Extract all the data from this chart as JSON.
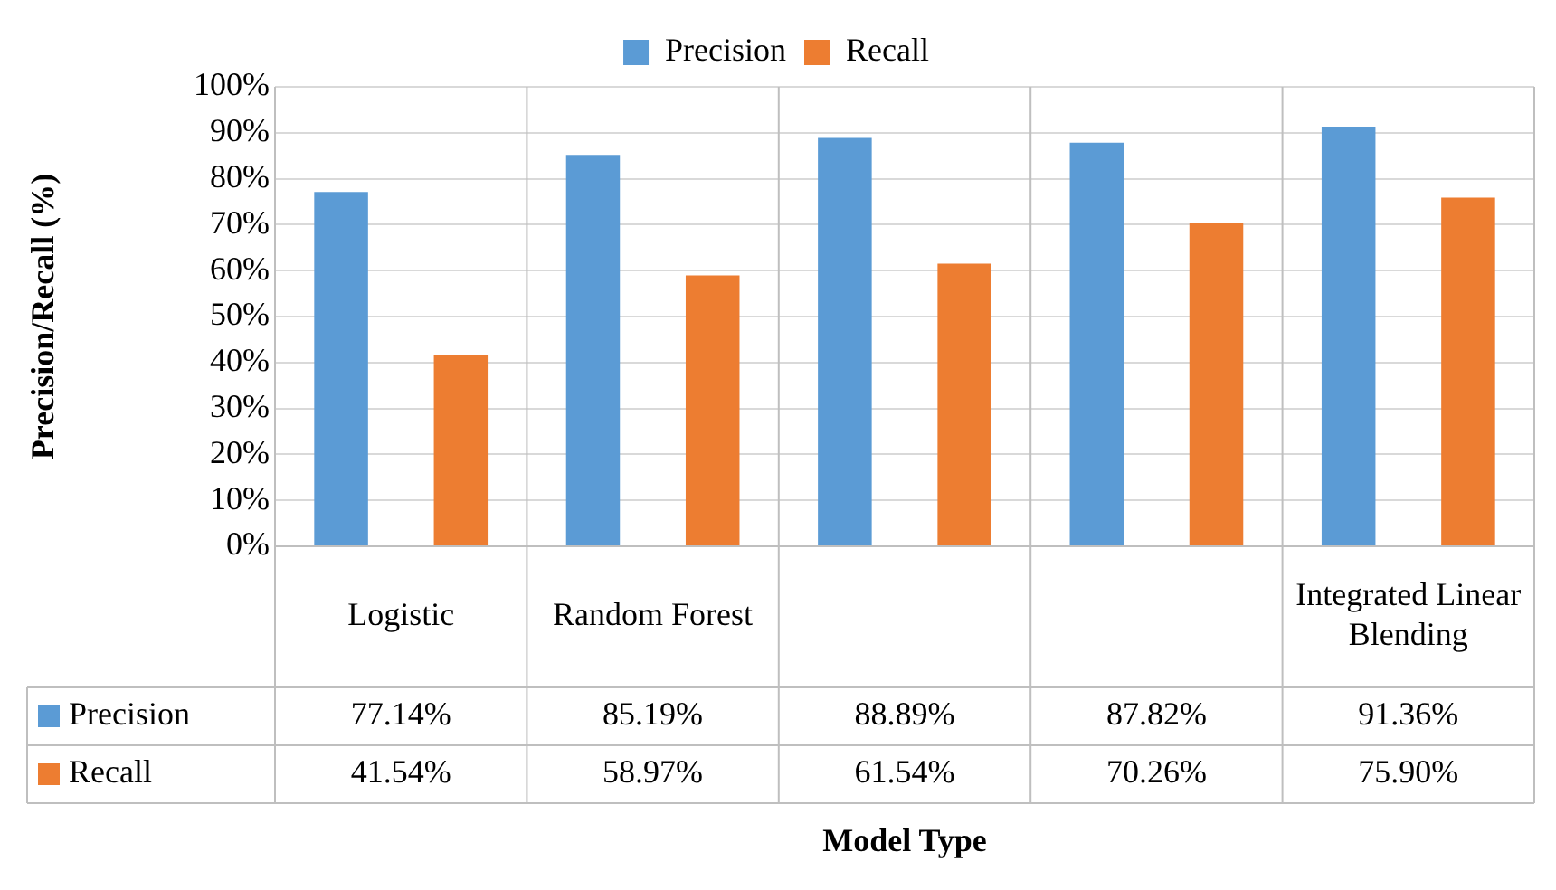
{
  "chart_data": {
    "type": "bar",
    "annotations": [
      "Model Type"
    ],
    "ylabel": "Precision/Recall (%)",
    "categories": [
      "Logistic",
      "Random Forest",
      null,
      null,
      "Integrated Linear Blending"
    ],
    "series": [
      {
        "name": "Precision",
        "color": "#5b9bd5",
        "values": [
          77.14,
          85.19,
          88.89,
          87.82,
          91.36
        ],
        "value_labels": [
          "77.14%",
          "85.19%",
          "88.89%",
          "87.82%",
          "91.36%"
        ]
      },
      {
        "name": "Recall",
        "color": "#ed7d31",
        "values": [
          41.54,
          58.97,
          61.54,
          70.26,
          75.9
        ],
        "value_labels": [
          "41.54%",
          "58.97%",
          "61.54%",
          "70.26%",
          "75.90%"
        ]
      }
    ],
    "ylim": [
      0,
      100
    ],
    "yticks": [
      {
        "value": 0,
        "label": "0%"
      },
      {
        "value": 10,
        "label": "10%"
      },
      {
        "value": 20,
        "label": "20%"
      },
      {
        "value": 30,
        "label": "30%"
      },
      {
        "value": 40,
        "label": "40%"
      },
      {
        "value": 50,
        "label": "50%"
      },
      {
        "value": 60,
        "label": "60%"
      },
      {
        "value": 70,
        "label": "70%"
      },
      {
        "value": 80,
        "label": "80%"
      },
      {
        "value": 90,
        "label": "90%"
      },
      {
        "value": 100,
        "label": "100%"
      }
    ],
    "grid": "y",
    "legend": "top"
  }
}
